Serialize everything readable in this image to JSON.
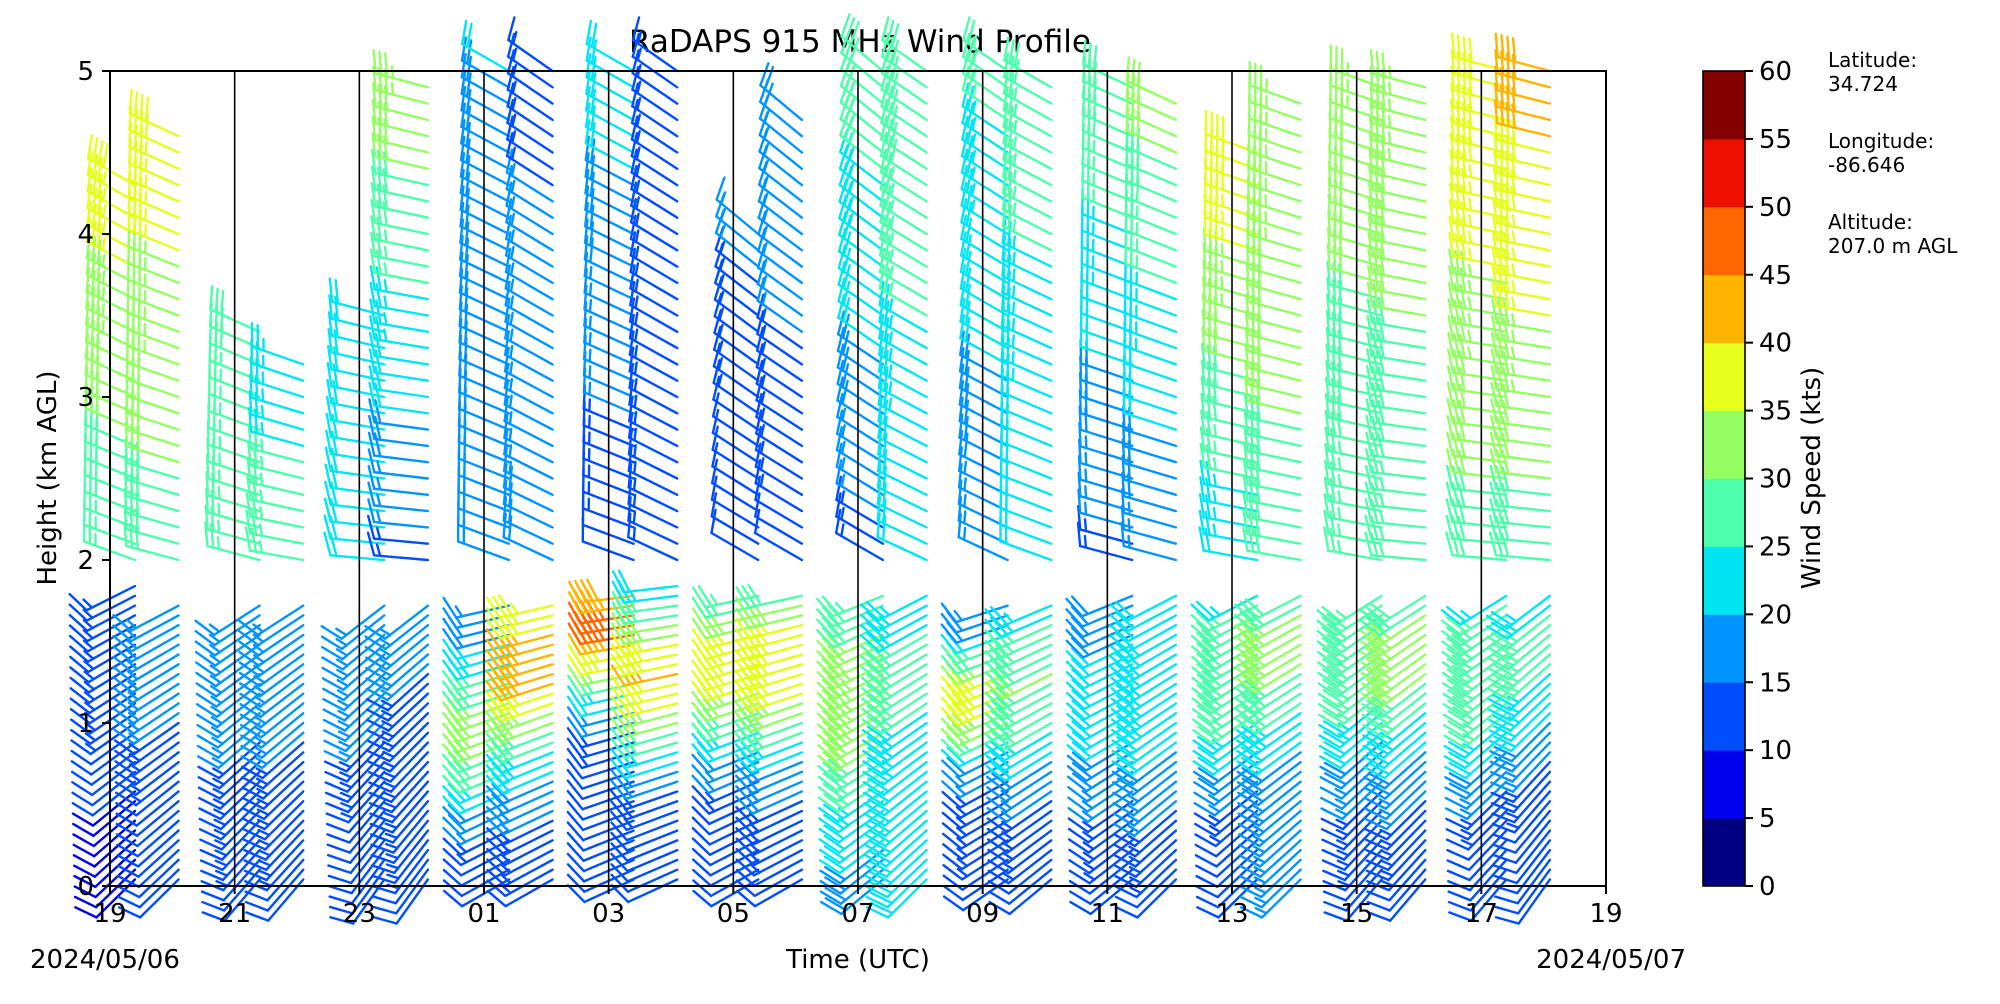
{
  "chart_data": {
    "type": "wind_barbs",
    "title": "RaDAPS 915 MHz Wind Profile",
    "xlabel": "Time (UTC)",
    "ylabel": "Height (km AGL)",
    "xlim": [
      0,
      24
    ],
    "ylim": [
      0,
      5
    ],
    "x_ticks": [
      0,
      2,
      4,
      6,
      8,
      10,
      12,
      14,
      16,
      18,
      20,
      22,
      24
    ],
    "x_tick_labels": [
      "19",
      "21",
      "23",
      "01",
      "03",
      "05",
      "07",
      "09",
      "11",
      "13",
      "15",
      "17",
      "19"
    ],
    "y_ticks": [
      0,
      1,
      2,
      3,
      4,
      5
    ],
    "y_tick_labels": [
      "0",
      "1",
      "2",
      "3",
      "4",
      "5"
    ],
    "start_date": "2024/05/06",
    "end_date": "2024/05/07",
    "separator_hours": [
      2,
      4,
      6,
      8,
      10,
      12,
      14,
      16,
      18,
      20,
      22
    ],
    "colorbar": {
      "label": "Wind Speed (kts)",
      "ticks": [
        "0",
        "5",
        "10",
        "15",
        "20",
        "25",
        "30",
        "35",
        "40",
        "45",
        "50",
        "55",
        "60"
      ],
      "colors": [
        "#000080",
        "#0000ed",
        "#004dff",
        "#0094ff",
        "#00e6f2",
        "#4dffab",
        "#94ff63",
        "#e6ff1a",
        "#ffb400",
        "#ff6600",
        "#ed0f00",
        "#800000"
      ]
    },
    "site": {
      "latitude_label": "Latitude:",
      "latitude": "34.724",
      "longitude_label": "Longitude:",
      "longitude": "-86.646",
      "altitude_label": "Altitude:",
      "altitude": "207.0 m AGL"
    },
    "sample_hours": [
      0.4,
      1.1,
      2.4,
      3.1,
      4.4,
      5.1,
      6.4,
      7.1,
      8.4,
      9.1,
      10.4,
      11.1,
      12.4,
      13.1,
      14.4,
      15.1,
      16.4,
      17.1,
      18.4,
      19.1,
      20.4,
      21.1,
      22.4,
      23.1
    ],
    "low_mode": {
      "top_km": [
        1.85,
        1.78,
        1.75,
        1.75,
        1.75,
        1.75,
        1.75,
        1.75,
        1.8,
        1.9,
        1.8,
        1.8,
        1.8,
        1.8,
        1.75,
        1.75,
        1.8,
        1.8,
        1.8,
        1.8,
        1.8,
        1.8,
        1.8,
        1.8
      ],
      "bottom_speed_kts": [
        8,
        10,
        12,
        12,
        10,
        12,
        10,
        12,
        10,
        10,
        10,
        12,
        18,
        20,
        12,
        12,
        12,
        12,
        10,
        15,
        12,
        12,
        10,
        10
      ],
      "peak_speed_kts": [
        14,
        16,
        16,
        16,
        17,
        15,
        32,
        42,
        46,
        40,
        38,
        40,
        34,
        26,
        40,
        30,
        22,
        24,
        30,
        32,
        30,
        32,
        30,
        26
      ],
      "peak_height_km": [
        1.4,
        1.4,
        1.4,
        1.4,
        1.4,
        1.4,
        1.0,
        1.4,
        1.6,
        1.3,
        1.4,
        1.4,
        1.2,
        1.3,
        1.2,
        1.3,
        1.2,
        1.3,
        1.4,
        1.5,
        1.5,
        1.5,
        1.4,
        1.5
      ],
      "peak_width_km": [
        0.6,
        0.6,
        0.6,
        0.6,
        0.6,
        0.6,
        0.5,
        0.6,
        0.4,
        0.5,
        0.5,
        0.5,
        0.6,
        0.4,
        0.3,
        0.5,
        0.5,
        0.6,
        0.6,
        0.5,
        0.6,
        0.6,
        0.6,
        0.6
      ],
      "direction_deg": [
        225,
        225,
        220,
        220,
        215,
        215,
        240,
        240,
        245,
        245,
        240,
        240,
        230,
        225,
        235,
        230,
        230,
        225,
        225,
        225,
        220,
        220,
        220,
        215
      ]
    },
    "high_mode": {
      "top_km": [
        4.35,
        4.6,
        3.5,
        3.3,
        3.55,
        4.95,
        5.0,
        5.0,
        5.0,
        5.0,
        4.1,
        4.75,
        5.0,
        5.0,
        5.0,
        4.95,
        4.95,
        4.85,
        4.55,
        4.85,
        4.9,
        4.95,
        5.0,
        5.0
      ],
      "speed_low_kts": [
        26,
        28,
        26,
        26,
        20,
        14,
        18,
        18,
        12,
        14,
        10,
        12,
        14,
        20,
        16,
        20,
        14,
        16,
        22,
        28,
        26,
        26,
        28,
        28
      ],
      "speed_high_kts": [
        38,
        38,
        28,
        24,
        22,
        34,
        20,
        14,
        22,
        14,
        16,
        18,
        28,
        30,
        26,
        28,
        30,
        32,
        40,
        35,
        33,
        34,
        40,
        42
      ],
      "direction_deg": [
        290,
        285,
        285,
        280,
        275,
        275,
        290,
        295,
        290,
        295,
        300,
        300,
        300,
        295,
        295,
        290,
        285,
        285,
        280,
        280,
        280,
        275,
        275,
        275
      ]
    }
  }
}
